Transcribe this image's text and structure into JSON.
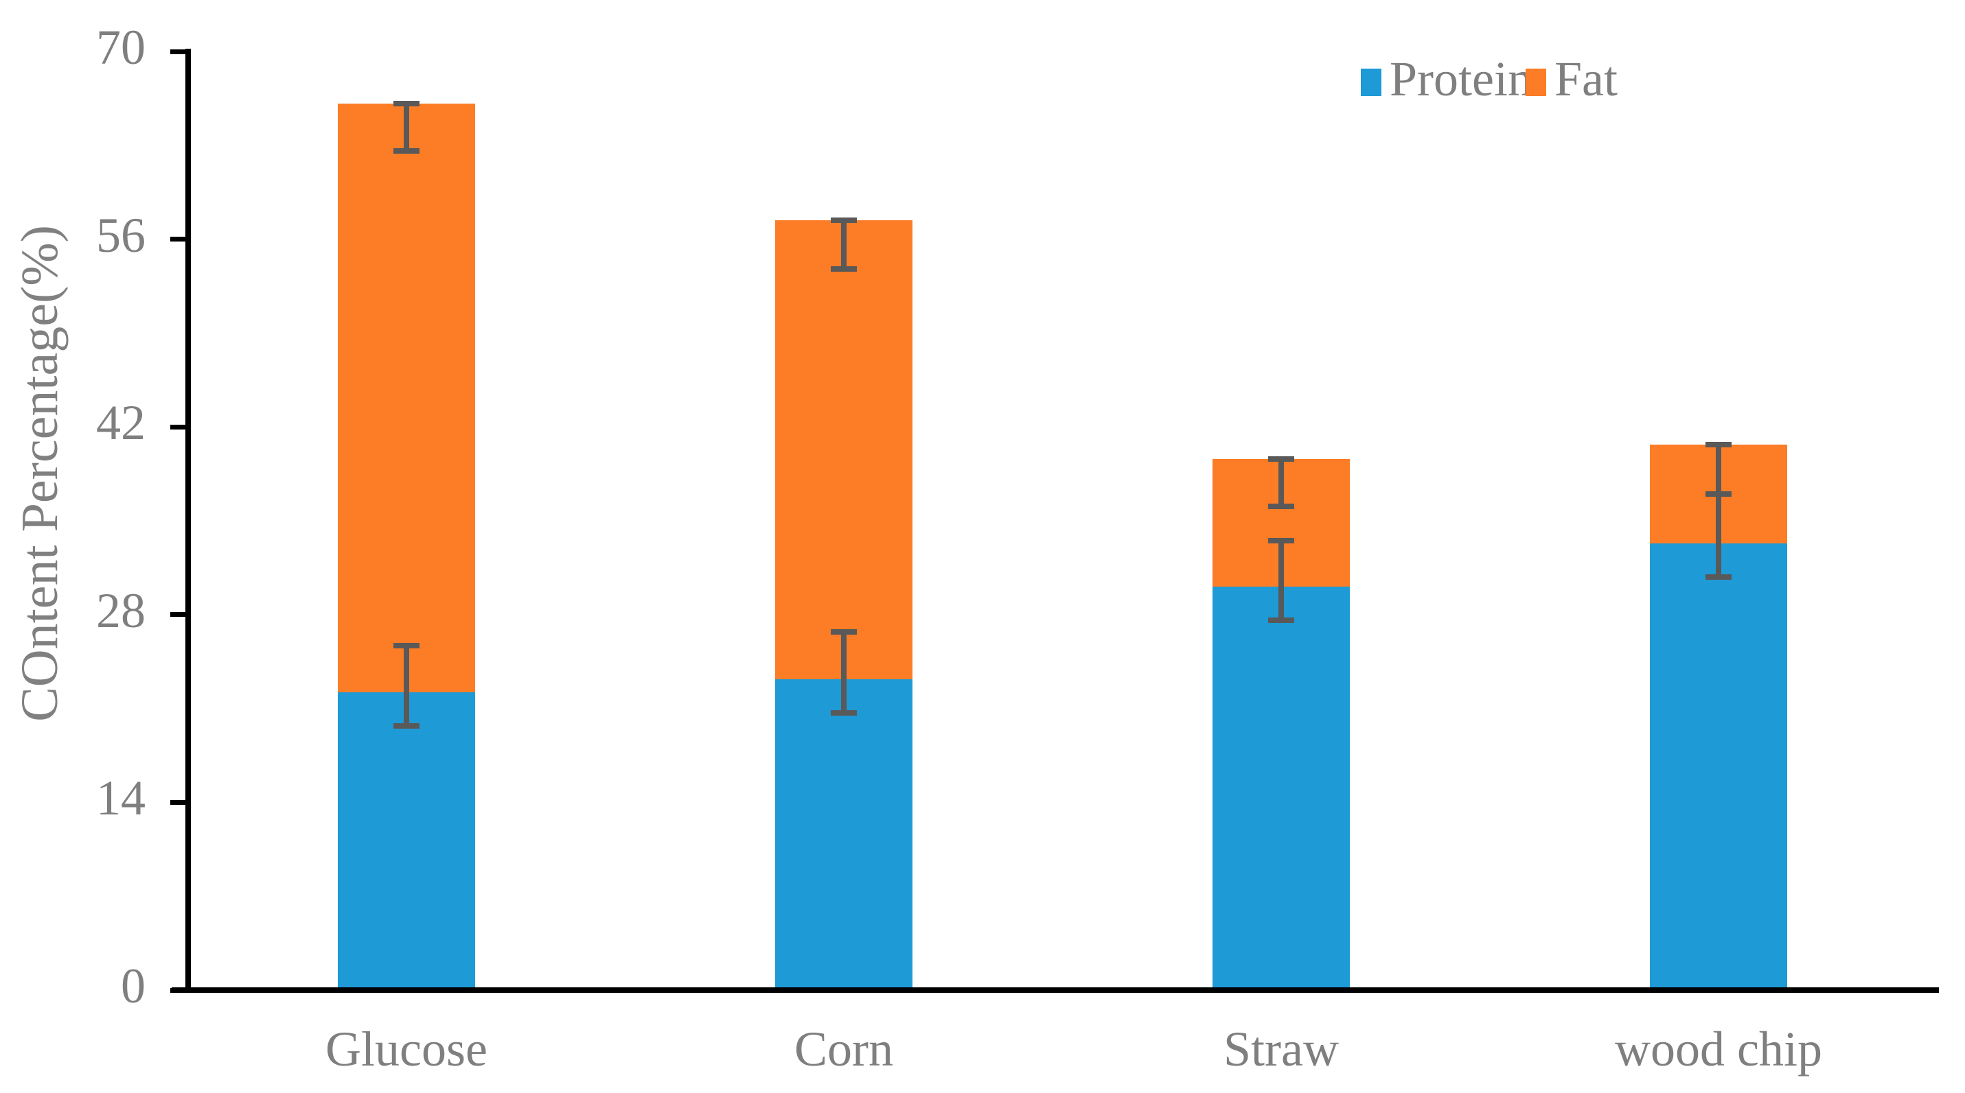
{
  "figure": {
    "background": "#FFFFFF"
  },
  "chart_data": {
    "type": "bar",
    "stacked": true,
    "categories": [
      "Glucose",
      "Corn",
      "Straw",
      "wood chip"
    ],
    "series": [
      {
        "name": "Protein",
        "color": "#1E9AD6",
        "values": [
          22.2,
          23.2,
          30.1,
          33.3
        ],
        "error_ranges": [
          [
            19.7,
            25.7
          ],
          [
            20.7,
            26.7
          ],
          [
            27.6,
            33.5
          ],
          [
            30.8,
            37.0
          ]
        ]
      },
      {
        "name": "Fat",
        "color": "#FC7D26",
        "values": [
          43.9,
          34.2,
          9.5,
          7.4
        ],
        "error_ranges": [
          [
            62.6,
            66.1
          ],
          [
            53.8,
            57.4
          ],
          [
            36.1,
            39.6
          ],
          [
            37.0,
            40.7
          ]
        ]
      }
    ],
    "stack_totals": [
      66.1,
      57.4,
      39.6,
      40.7
    ],
    "title": "",
    "xlabel": "",
    "ylabel": "COntent Percentage(%)",
    "yticks": [
      0,
      14,
      28,
      42,
      56,
      70
    ],
    "ylim": [
      0,
      70
    ],
    "grid": false,
    "legend_position": "top-right",
    "error_bar_color": "#595959",
    "axis_color": "#000000",
    "label_color": "#7F7F7F"
  },
  "legend": {
    "items": [
      {
        "label": "Protein",
        "color": "#1E9AD6"
      },
      {
        "label": "Fat",
        "color": "#FC7D26"
      }
    ]
  },
  "y_axis": {
    "title": "COntent Percentage(%)",
    "tick_labels": [
      "70",
      "56",
      "42",
      "28",
      "14",
      "0"
    ]
  },
  "x_axis": {
    "labels": [
      "Glucose",
      "Corn",
      "Straw",
      "wood chip"
    ]
  }
}
